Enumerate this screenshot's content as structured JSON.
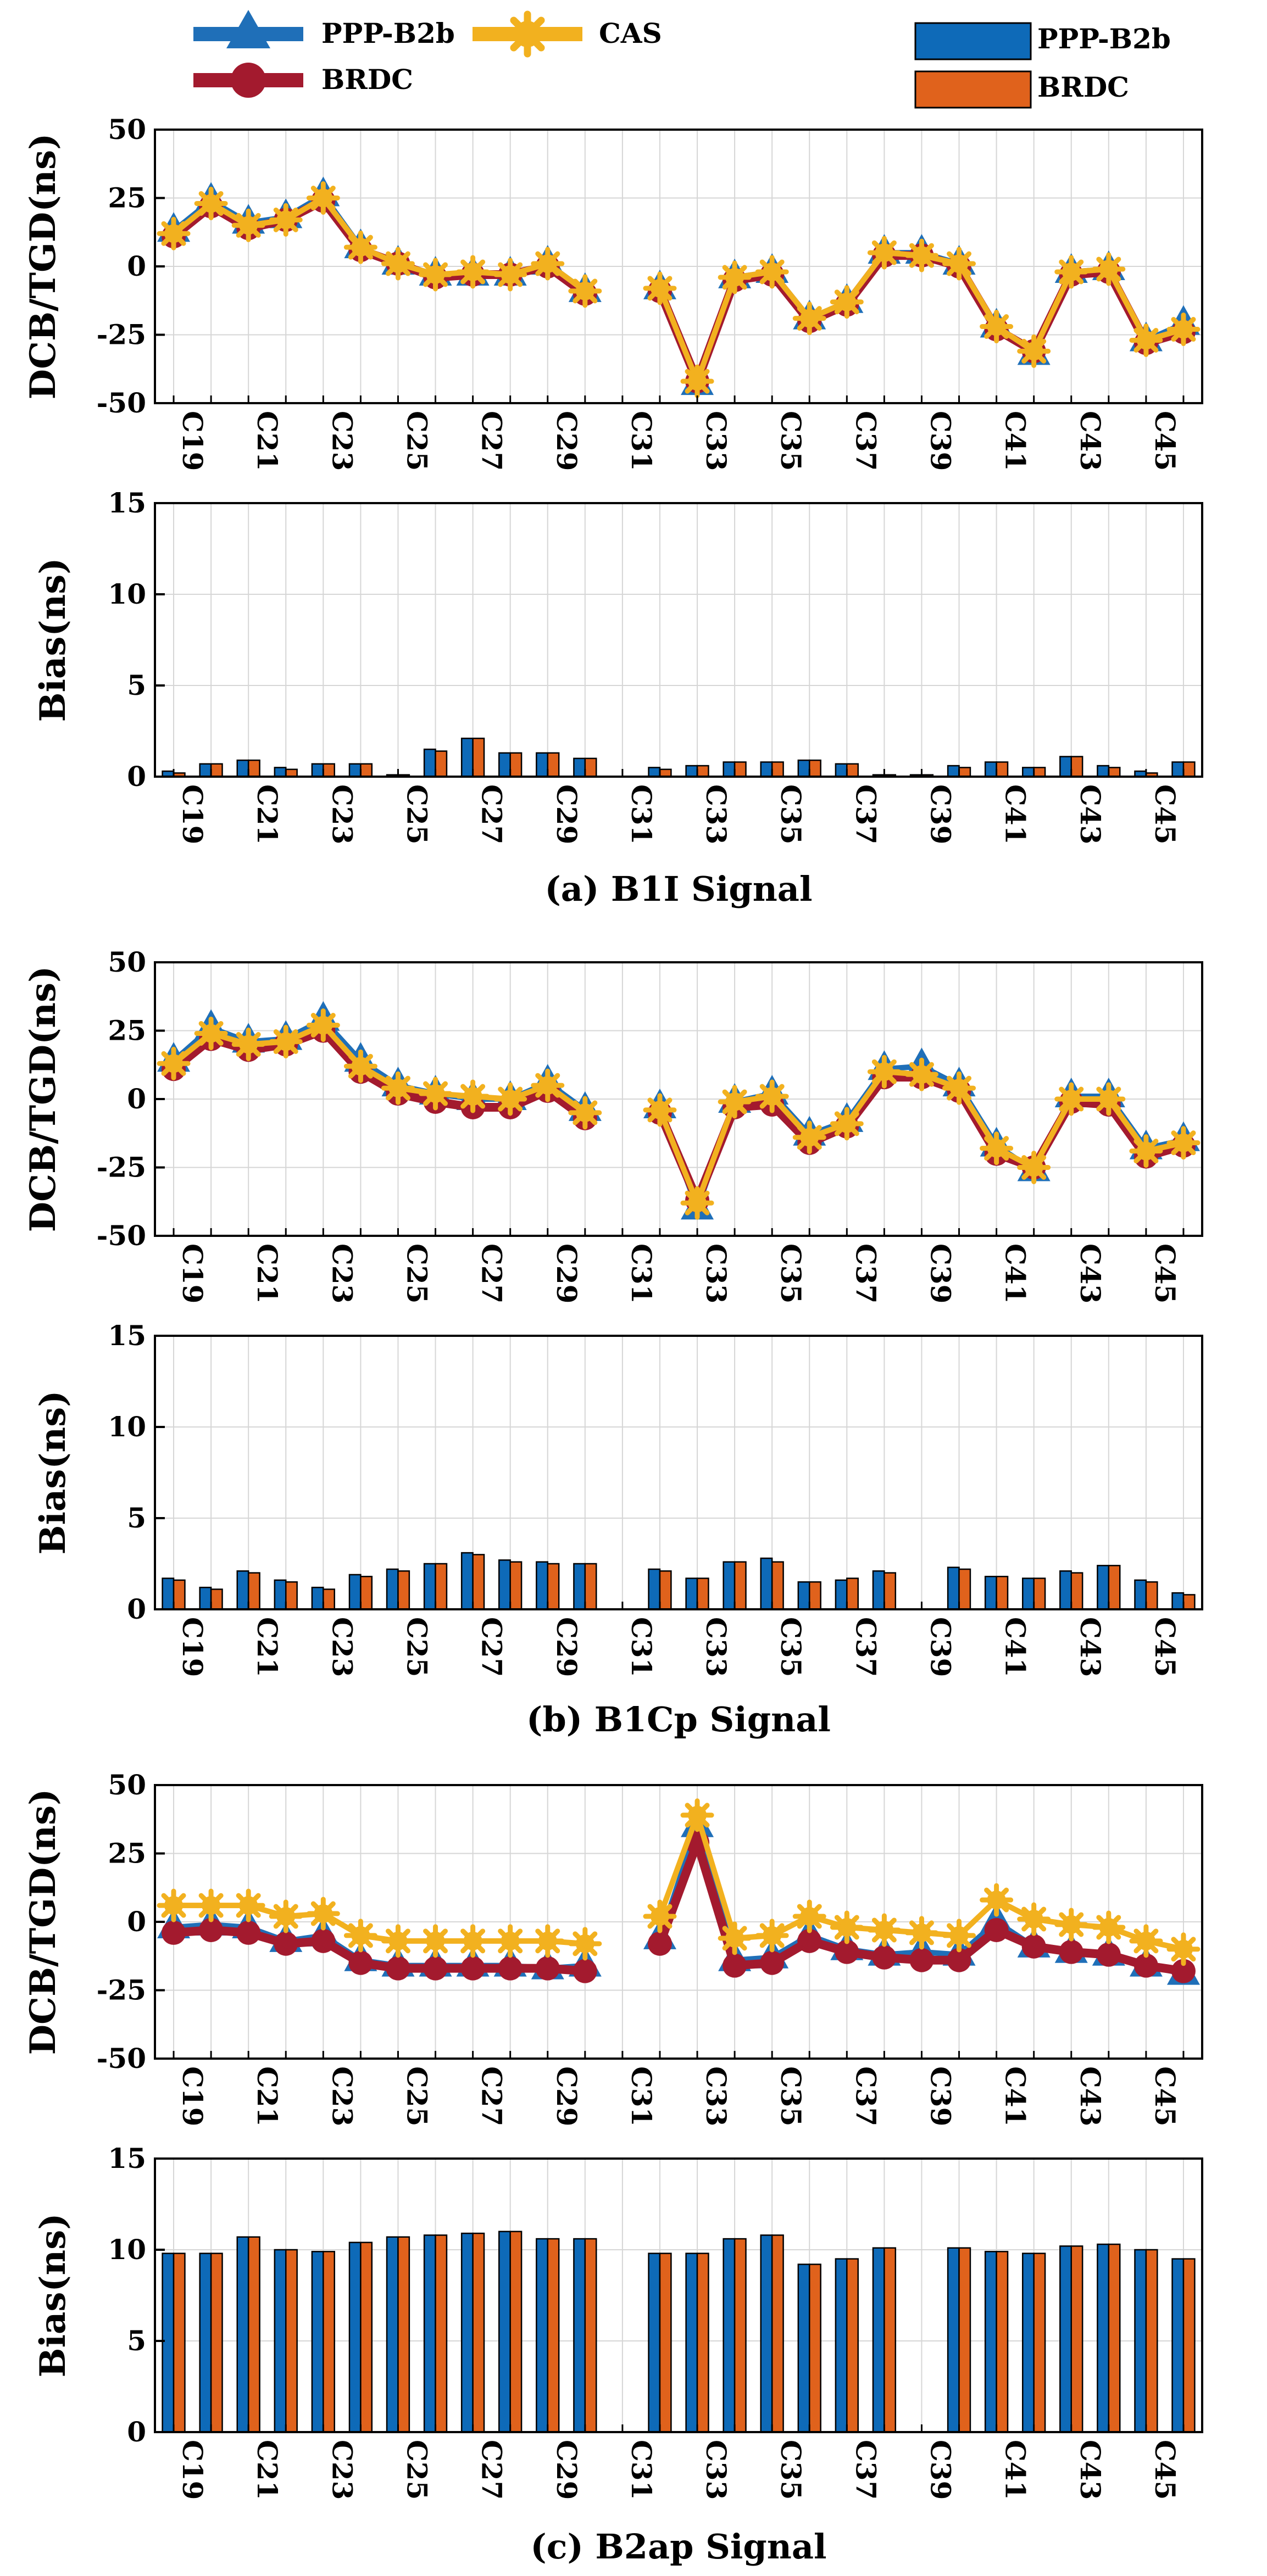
{
  "legend": {
    "lines": [
      {
        "name": "PPP-B2b",
        "color": "#1f6fb8",
        "marker": "triangle-icon"
      },
      {
        "name": "CAS",
        "color": "#f2b11f",
        "marker": "asterisk-icon"
      },
      {
        "name": "BRDC",
        "color": "#a31a2e",
        "marker": "circle-icon"
      }
    ],
    "bars": [
      {
        "name": "PPP-B2b",
        "color": "#0e6ab8"
      },
      {
        "name": "BRDC",
        "color": "#e0621c"
      }
    ]
  },
  "chart_data": [
    {
      "type": "line",
      "signal": "B1I",
      "ylabel": "DCB/TGD(ns)",
      "ylim": [
        -50,
        50
      ],
      "yticks": [
        -50,
        -25,
        0,
        25,
        50
      ],
      "categories": [
        "C19",
        "C20",
        "C21",
        "C22",
        "C23",
        "C24",
        "C25",
        "C26",
        "C27",
        "C28",
        "C29",
        "C30",
        "C31",
        "C32",
        "C33",
        "C34",
        "C35",
        "C36",
        "C37",
        "C38",
        "C39",
        "C40",
        "C41",
        "C42",
        "C43",
        "C44",
        "C45",
        "C46"
      ],
      "tick_labels": [
        "C19",
        "C21",
        "C23",
        "C25",
        "C27",
        "C29",
        "C31",
        "C33",
        "C35",
        "C37",
        "C39",
        "C41",
        "C43",
        "C45"
      ],
      "series": [
        {
          "name": "PPP-B2b",
          "values": [
            13,
            24,
            16,
            18,
            26,
            7,
            1,
            -3,
            -3,
            -3,
            1,
            -9,
            null,
            -8,
            -43,
            -4,
            -2,
            -19,
            -13,
            5,
            5,
            1,
            -22,
            -32,
            -2,
            -1,
            -27,
            -21
          ]
        },
        {
          "name": "BRDC",
          "values": [
            11,
            22,
            14,
            17,
            24,
            6,
            1,
            -4,
            -3,
            -3,
            0,
            -10,
            null,
            -9,
            -42,
            -5,
            -3,
            -20,
            -14,
            4,
            4,
            0,
            -23,
            -31,
            -3,
            -2,
            -28,
            -24
          ]
        },
        {
          "name": "CAS",
          "values": [
            12,
            23,
            15,
            17,
            25,
            7,
            1,
            -3,
            -2,
            -3,
            1,
            -9,
            null,
            -8,
            -42,
            -4,
            -2,
            -19,
            -13,
            5,
            4,
            1,
            -22,
            -31,
            -2,
            -1,
            -27,
            -23
          ]
        }
      ]
    },
    {
      "type": "bar",
      "signal": "B1I",
      "ylabel": "Bias(ns)",
      "ylim": [
        0,
        15
      ],
      "yticks": [
        0,
        5,
        10,
        15
      ],
      "categories": [
        "C19",
        "C20",
        "C21",
        "C22",
        "C23",
        "C24",
        "C25",
        "C26",
        "C27",
        "C28",
        "C29",
        "C30",
        "C31",
        "C32",
        "C33",
        "C34",
        "C35",
        "C36",
        "C37",
        "C38",
        "C39",
        "C40",
        "C41",
        "C42",
        "C43",
        "C44",
        "C45",
        "C46"
      ],
      "tick_labels": [
        "C19",
        "C21",
        "C23",
        "C25",
        "C27",
        "C29",
        "C31",
        "C33",
        "C35",
        "C37",
        "C39",
        "C41",
        "C43",
        "C45"
      ],
      "caption": "(a) B1I Signal",
      "series": [
        {
          "name": "PPP-B2b",
          "values": [
            0.3,
            0.7,
            0.9,
            0.5,
            0.7,
            0.7,
            0.1,
            1.5,
            2.1,
            1.3,
            1.3,
            1.0,
            0,
            0.5,
            0.6,
            0.8,
            0.8,
            0.9,
            0.7,
            0.1,
            0.1,
            0.6,
            0.8,
            0.5,
            1.1,
            0.6,
            0.3,
            0.8
          ]
        },
        {
          "name": "BRDC",
          "values": [
            0.2,
            0.7,
            0.9,
            0.4,
            0.7,
            0.7,
            0.1,
            1.4,
            2.1,
            1.3,
            1.3,
            1.0,
            0,
            0.4,
            0.6,
            0.8,
            0.8,
            0.9,
            0.7,
            0.1,
            0.1,
            0.5,
            0.8,
            0.5,
            1.1,
            0.5,
            0.2,
            0.8
          ]
        }
      ]
    },
    {
      "type": "line",
      "signal": "B1Cp",
      "ylabel": "DCB/TGD(ns)",
      "ylim": [
        -50,
        50
      ],
      "yticks": [
        -50,
        -25,
        0,
        25,
        50
      ],
      "categories": [
        "C19",
        "C20",
        "C21",
        "C22",
        "C23",
        "C24",
        "C25",
        "C26",
        "C27",
        "C28",
        "C29",
        "C30",
        "C31",
        "C32",
        "C33",
        "C34",
        "C35",
        "C36",
        "C37",
        "C38",
        "C39",
        "C40",
        "C41",
        "C42",
        "C43",
        "C44",
        "C45",
        "C46"
      ],
      "tick_labels": [
        "C19",
        "C21",
        "C23",
        "C25",
        "C27",
        "C29",
        "C31",
        "C33",
        "C35",
        "C37",
        "C39",
        "C41",
        "C43",
        "C45"
      ],
      "series": [
        {
          "name": "PPP-B2b",
          "values": [
            14,
            26,
            21,
            22,
            29,
            14,
            5,
            2,
            0,
            0,
            6,
            -4,
            null,
            -3,
            -40,
            -1,
            2,
            -13,
            -8,
            11,
            12,
            5,
            -17,
            -26,
            1,
            1,
            -18,
            -15
          ]
        },
        {
          "name": "BRDC",
          "values": [
            11,
            22,
            18,
            20,
            25,
            10,
            2,
            -1,
            -3,
            -3,
            3,
            -7,
            null,
            -5,
            -37,
            -3,
            -2,
            -16,
            -10,
            8,
            8,
            3,
            -20,
            -25,
            -1,
            -2,
            -21,
            -17
          ]
        },
        {
          "name": "CAS",
          "values": [
            13,
            24,
            20,
            21,
            27,
            12,
            4,
            2,
            1,
            0,
            5,
            -5,
            null,
            -4,
            -38,
            -1,
            1,
            -14,
            -9,
            10,
            9,
            4,
            -18,
            -25,
            0,
            0,
            -19,
            -16
          ]
        }
      ]
    },
    {
      "type": "bar",
      "signal": "B1Cp",
      "ylabel": "Bias(ns)",
      "ylim": [
        0,
        15
      ],
      "yticks": [
        0,
        5,
        10,
        15
      ],
      "categories": [
        "C19",
        "C20",
        "C21",
        "C22",
        "C23",
        "C24",
        "C25",
        "C26",
        "C27",
        "C28",
        "C29",
        "C30",
        "C31",
        "C32",
        "C33",
        "C34",
        "C35",
        "C36",
        "C37",
        "C38",
        "C39",
        "C40",
        "C41",
        "C42",
        "C43",
        "C44",
        "C45",
        "C46"
      ],
      "tick_labels": [
        "C19",
        "C21",
        "C23",
        "C25",
        "C27",
        "C29",
        "C31",
        "C33",
        "C35",
        "C37",
        "C39",
        "C41",
        "C43",
        "C45"
      ],
      "caption": "(b) B1Cp Signal",
      "series": [
        {
          "name": "PPP-B2b",
          "values": [
            1.7,
            1.2,
            2.1,
            1.6,
            1.2,
            1.9,
            2.2,
            2.5,
            3.1,
            2.7,
            2.6,
            2.5,
            0,
            2.2,
            1.7,
            2.6,
            2.8,
            1.5,
            1.6,
            2.1,
            0,
            2.3,
            1.8,
            1.7,
            2.1,
            2.4,
            1.6,
            0.9
          ]
        },
        {
          "name": "BRDC",
          "values": [
            1.6,
            1.1,
            2.0,
            1.5,
            1.1,
            1.8,
            2.1,
            2.5,
            3.0,
            2.6,
            2.5,
            2.5,
            0,
            2.1,
            1.7,
            2.6,
            2.6,
            1.5,
            1.7,
            2.0,
            0,
            2.2,
            1.8,
            1.7,
            2.0,
            2.4,
            1.5,
            0.8
          ]
        }
      ]
    },
    {
      "type": "line",
      "signal": "B2ap",
      "ylabel": "DCB/TGD(ns)",
      "ylim": [
        -50,
        50
      ],
      "yticks": [
        -50,
        -25,
        0,
        25,
        50
      ],
      "categories": [
        "C19",
        "C20",
        "C21",
        "C22",
        "C23",
        "C24",
        "C25",
        "C26",
        "C27",
        "C28",
        "C29",
        "C30",
        "C31",
        "C32",
        "C33",
        "C34",
        "C35",
        "C36",
        "C37",
        "C38",
        "C39",
        "C40",
        "C41",
        "C42",
        "C43",
        "C44",
        "C45",
        "C46"
      ],
      "tick_labels": [
        "C19",
        "C21",
        "C23",
        "C25",
        "C27",
        "C29",
        "C31",
        "C33",
        "C35",
        "C37",
        "C39",
        "C41",
        "C43",
        "C45"
      ],
      "series": [
        {
          "name": "PPP-B2b",
          "values": [
            -2,
            -1,
            -2,
            -7,
            -5,
            -14,
            -16,
            -16,
            -16,
            -16,
            -17,
            -16,
            null,
            -6,
            35,
            -14,
            -13,
            -5,
            -10,
            -12,
            -11,
            -12,
            0,
            -9,
            -11,
            -12,
            -16,
            -19
          ]
        },
        {
          "name": "BRDC",
          "values": [
            -4,
            -3,
            -4,
            -8,
            -7,
            -15,
            -17,
            -17,
            -17,
            -17,
            -17,
            -18,
            null,
            -8,
            29,
            -16,
            -15,
            -7,
            -11,
            -13,
            -14,
            -14,
            -3,
            -9,
            -11,
            -12,
            -16,
            -18
          ]
        },
        {
          "name": "CAS",
          "values": [
            6,
            6,
            6,
            2,
            3,
            -5,
            -7,
            -7,
            -7,
            -7,
            -7,
            -8,
            null,
            2,
            39,
            -6,
            -5,
            2,
            -2,
            -3,
            -4,
            -5,
            8,
            1,
            -1,
            -2,
            -7,
            -10
          ]
        }
      ]
    },
    {
      "type": "bar",
      "signal": "B2ap",
      "ylabel": "Bias(ns)",
      "ylim": [
        0,
        15
      ],
      "yticks": [
        0,
        5,
        10,
        15
      ],
      "categories": [
        "C19",
        "C20",
        "C21",
        "C22",
        "C23",
        "C24",
        "C25",
        "C26",
        "C27",
        "C28",
        "C29",
        "C30",
        "C31",
        "C32",
        "C33",
        "C34",
        "C35",
        "C36",
        "C37",
        "C38",
        "C39",
        "C40",
        "C41",
        "C42",
        "C43",
        "C44",
        "C45",
        "C46"
      ],
      "tick_labels": [
        "C19",
        "C21",
        "C23",
        "C25",
        "C27",
        "C29",
        "C31",
        "C33",
        "C35",
        "C37",
        "C39",
        "C41",
        "C43",
        "C45"
      ],
      "caption": "(c) B2ap Signal",
      "series": [
        {
          "name": "PPP-B2b",
          "values": [
            9.8,
            9.8,
            10.7,
            10.0,
            9.9,
            10.4,
            10.7,
            10.8,
            10.9,
            11.0,
            10.6,
            10.6,
            0,
            9.8,
            9.8,
            10.6,
            10.8,
            9.2,
            9.5,
            10.1,
            0,
            10.1,
            9.9,
            9.8,
            10.2,
            10.3,
            10.0,
            9.5
          ]
        },
        {
          "name": "BRDC",
          "values": [
            9.8,
            9.8,
            10.7,
            10.0,
            9.9,
            10.4,
            10.7,
            10.8,
            10.9,
            11.0,
            10.6,
            10.6,
            0,
            9.8,
            9.8,
            10.6,
            10.8,
            9.2,
            9.5,
            10.1,
            0,
            10.1,
            9.9,
            9.8,
            10.2,
            10.3,
            10.0,
            9.5
          ]
        }
      ]
    }
  ]
}
